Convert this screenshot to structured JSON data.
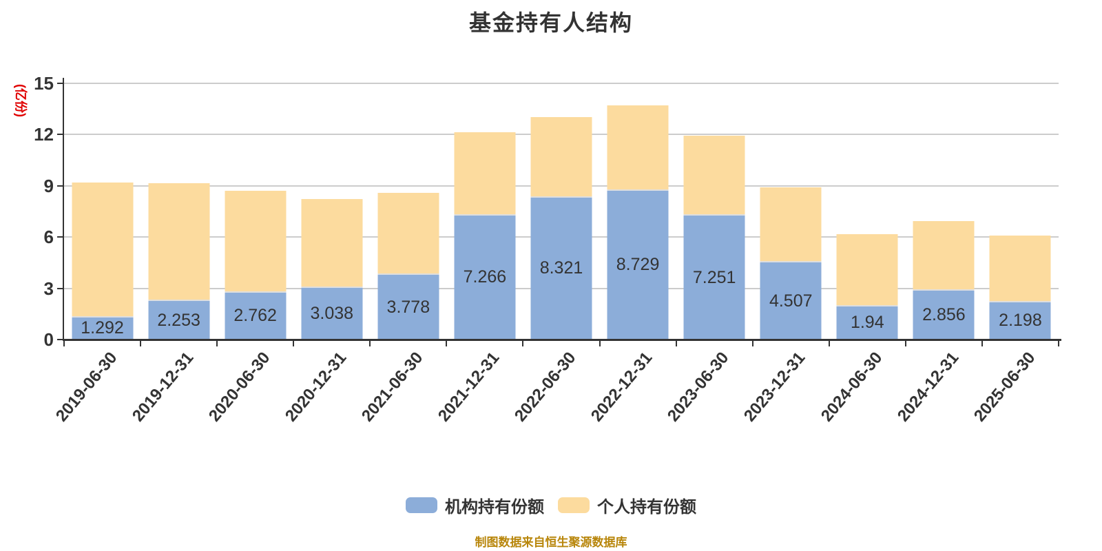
{
  "title": "基金持有人结构",
  "y_axis": {
    "unit_label": "(亿份)",
    "unit_color": "#e00000",
    "ticks": [
      0,
      3,
      6,
      9,
      12,
      15
    ],
    "max": 15
  },
  "legend": [
    {
      "label": "机构持有份额",
      "color": "#8cadd9"
    },
    {
      "label": "个人持有份额",
      "color": "#fcdb9e"
    }
  ],
  "footer": "制图数据来自恒生聚源数据库",
  "colors": {
    "institution": "#8cadd9",
    "individual": "#fcdb9e",
    "gridline": "#cccccc",
    "axis": "#333333",
    "footer_text": "#b8860b"
  },
  "chart_data": {
    "type": "bar",
    "stacked": true,
    "title": "基金持有人结构",
    "ylabel": "(亿份)",
    "ylim": [
      0,
      15
    ],
    "grid": true,
    "legend_position": "bottom",
    "categories": [
      "2019-06-30",
      "2019-12-31",
      "2020-06-30",
      "2020-12-31",
      "2021-06-30",
      "2021-12-31",
      "2022-06-30",
      "2022-12-31",
      "2023-06-30",
      "2023-12-31",
      "2024-06-30",
      "2024-12-31",
      "2025-06-30"
    ],
    "series": [
      {
        "name": "机构持有份额",
        "color": "#8cadd9",
        "labels_shown": true,
        "values": [
          1.292,
          2.253,
          2.762,
          3.038,
          3.778,
          7.266,
          8.321,
          8.729,
          7.251,
          4.507,
          1.94,
          2.856,
          2.198
        ]
      },
      {
        "name": "个人持有份额",
        "color": "#fcdb9e",
        "labels_shown": false,
        "values": [
          7.9,
          6.92,
          5.96,
          5.18,
          4.81,
          4.86,
          4.7,
          4.98,
          4.69,
          4.4,
          4.23,
          4.08,
          3.9
        ]
      }
    ]
  }
}
